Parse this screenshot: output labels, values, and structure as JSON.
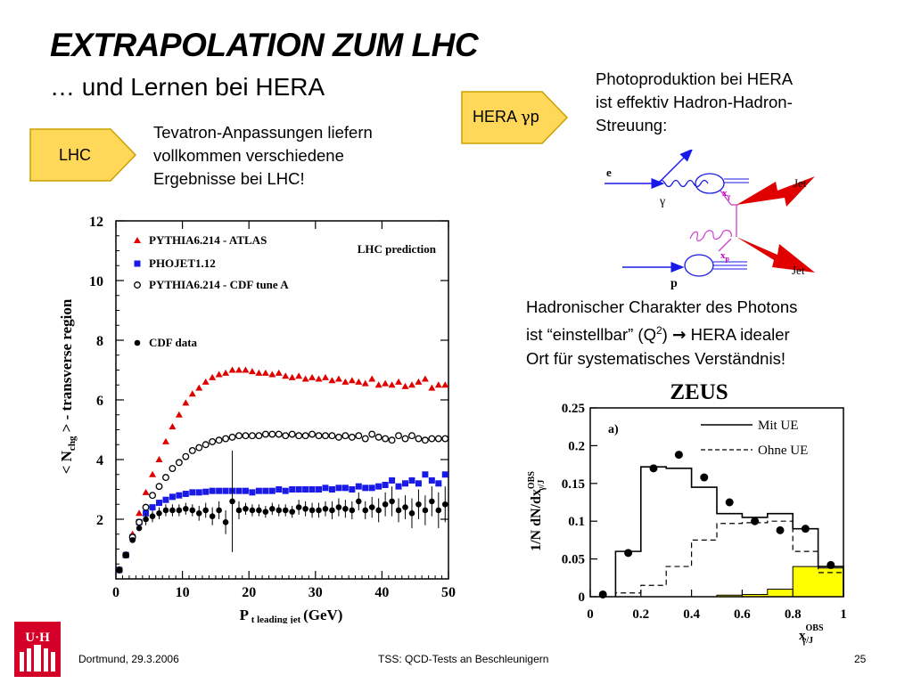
{
  "title": "EXTRAPOLATION ZUM LHC",
  "subtitle": "… und Lernen bei HERA",
  "lhc_arrow": {
    "label": "LHC"
  },
  "hera_arrow": {
    "label_prefix": "HERA ",
    "gamma": "γ",
    "label_suffix": "p"
  },
  "lhc_text": {
    "lines": [
      "Tevatron-Anpassungen liefern",
      "vollkommen verschiedene",
      "Ergebnisse bei LHC!"
    ]
  },
  "photo_text": {
    "lines": [
      "Photoproduktion bei HERA",
      "ist effektiv Hadron-Hadron-",
      "Streuung:"
    ]
  },
  "hadron_text": {
    "line1": "Hadronischer Charakter des Photons",
    "line2_a": "ist “einstellbar” (Q",
    "line2_sup": "2",
    "line2_b": ") ",
    "line2_arrow": "→",
    "line2_c": " HERA idealer",
    "line3": "Ort für systematisches Verständnis!"
  },
  "feynman": {
    "e": "e",
    "gamma": "γ",
    "x_gamma": "x",
    "x_gamma_sub": "γ",
    "x_p": "x",
    "x_p_sub": "p",
    "p": "p",
    "jet1": "Jet",
    "jet2": "Jet"
  },
  "colors": {
    "arrow_fill": "#ffd85a",
    "arrow_stroke": "#c9a000",
    "red": "#e00000",
    "blue": "#1a1ae8",
    "zeus_fill": "#ffff00"
  },
  "footer": {
    "date": "Dortmund, 29.3.2006",
    "talk": "TSS: QCD-Tests an Beschleunigern",
    "page": "25"
  },
  "logo": {
    "text": "U·H"
  },
  "chart_data": [
    {
      "type": "scatter",
      "title": "",
      "annotation": "LHC prediction",
      "xlabel": "P",
      "xlabel_sub": "t leading jet",
      "xlabel_unit": "(GeV)",
      "ylabel_a": "< N",
      "ylabel_sub": "chg",
      "ylabel_b": " > - transverse region",
      "xlim": [
        0,
        50
      ],
      "ylim": [
        0,
        12
      ],
      "xticks": [
        0,
        10,
        20,
        30,
        40,
        50
      ],
      "yticks": [
        2,
        4,
        6,
        8,
        10,
        12
      ],
      "legend_placement": "top-left",
      "series": [
        {
          "name": "PYTHIA6.214 - ATLAS",
          "marker": "triangle",
          "color": "#e00000",
          "x": [
            0.5,
            1.5,
            2.5,
            3.5,
            4.5,
            5.5,
            6.5,
            7.5,
            8.5,
            9.5,
            10.5,
            11.5,
            12.5,
            13.5,
            14.5,
            15.5,
            16.5,
            17.5,
            18.5,
            19.5,
            20.5,
            21.5,
            22.5,
            23.5,
            24.5,
            25.5,
            26.5,
            27.5,
            28.5,
            29.5,
            30.5,
            31.5,
            32.5,
            33.5,
            34.5,
            35.5,
            36.5,
            37.5,
            38.5,
            39.5,
            40.5,
            41.5,
            42.5,
            43.5,
            44.5,
            45.5,
            46.5,
            47.5,
            48.5,
            49.5
          ],
          "y": [
            0.3,
            0.8,
            1.5,
            2.2,
            2.9,
            3.5,
            4.0,
            4.6,
            5.1,
            5.5,
            5.9,
            6.2,
            6.4,
            6.6,
            6.75,
            6.85,
            6.9,
            7.0,
            7.0,
            7.0,
            6.95,
            6.9,
            6.9,
            6.85,
            6.9,
            6.8,
            6.75,
            6.8,
            6.7,
            6.75,
            6.7,
            6.75,
            6.65,
            6.7,
            6.6,
            6.65,
            6.6,
            6.55,
            6.7,
            6.5,
            6.55,
            6.5,
            6.6,
            6.45,
            6.5,
            6.6,
            6.7,
            6.4,
            6.5,
            6.5
          ]
        },
        {
          "name": "PHOJET1.12",
          "marker": "square",
          "color": "#1a1ae8",
          "x": [
            0.5,
            1.5,
            2.5,
            3.5,
            4.5,
            5.5,
            6.5,
            7.5,
            8.5,
            9.5,
            10.5,
            11.5,
            12.5,
            13.5,
            14.5,
            15.5,
            16.5,
            17.5,
            18.5,
            19.5,
            20.5,
            21.5,
            22.5,
            23.5,
            24.5,
            25.5,
            26.5,
            27.5,
            28.5,
            29.5,
            30.5,
            31.5,
            32.5,
            33.5,
            34.5,
            35.5,
            36.5,
            37.5,
            38.5,
            39.5,
            40.5,
            41.5,
            42.5,
            43.5,
            44.5,
            45.5,
            46.5,
            47.5,
            48.5,
            49.5
          ],
          "y": [
            0.3,
            0.8,
            1.4,
            1.9,
            2.2,
            2.4,
            2.55,
            2.65,
            2.75,
            2.8,
            2.85,
            2.9,
            2.9,
            2.92,
            2.95,
            2.95,
            2.95,
            2.95,
            2.95,
            2.95,
            2.9,
            2.95,
            2.95,
            2.95,
            3.0,
            2.95,
            3.0,
            3.0,
            3.0,
            3.0,
            3.0,
            3.05,
            3.0,
            3.05,
            3.05,
            3.0,
            3.1,
            3.05,
            3.05,
            3.1,
            3.15,
            3.3,
            3.1,
            3.2,
            3.3,
            3.2,
            3.5,
            3.3,
            3.2,
            3.5
          ]
        },
        {
          "name": "PYTHIA6.214 - CDF tune A",
          "marker": "open-circle",
          "color": "#000000",
          "x": [
            0.5,
            1.5,
            2.5,
            3.5,
            4.5,
            5.5,
            6.5,
            7.5,
            8.5,
            9.5,
            10.5,
            11.5,
            12.5,
            13.5,
            14.5,
            15.5,
            16.5,
            17.5,
            18.5,
            19.5,
            20.5,
            21.5,
            22.5,
            23.5,
            24.5,
            25.5,
            26.5,
            27.5,
            28.5,
            29.5,
            30.5,
            31.5,
            32.5,
            33.5,
            34.5,
            35.5,
            36.5,
            37.5,
            38.5,
            39.5,
            40.5,
            41.5,
            42.5,
            43.5,
            44.5,
            45.5,
            46.5,
            47.5,
            48.5,
            49.5
          ],
          "y": [
            0.3,
            0.8,
            1.4,
            1.9,
            2.4,
            2.8,
            3.1,
            3.4,
            3.7,
            3.9,
            4.1,
            4.3,
            4.4,
            4.5,
            4.6,
            4.65,
            4.7,
            4.75,
            4.8,
            4.8,
            4.8,
            4.8,
            4.85,
            4.85,
            4.85,
            4.8,
            4.85,
            4.8,
            4.8,
            4.85,
            4.8,
            4.8,
            4.8,
            4.75,
            4.8,
            4.75,
            4.8,
            4.7,
            4.85,
            4.75,
            4.7,
            4.65,
            4.8,
            4.7,
            4.8,
            4.7,
            4.65,
            4.7,
            4.7,
            4.7
          ]
        },
        {
          "name": "CDF data",
          "marker": "filled-circle",
          "color": "#000000",
          "x": [
            0.5,
            1.5,
            2.5,
            3.5,
            4.5,
            5.5,
            6.5,
            7.5,
            8.5,
            9.5,
            10.5,
            11.5,
            12.5,
            13.5,
            14.5,
            15.5,
            16.5,
            17.5,
            18.5,
            19.5,
            20.5,
            21.5,
            22.5,
            23.5,
            24.5,
            25.5,
            26.5,
            27.5,
            28.5,
            29.5,
            30.5,
            31.5,
            32.5,
            33.5,
            34.5,
            35.5,
            36.5,
            37.5,
            38.5,
            39.5,
            40.5,
            41.5,
            42.5,
            43.5,
            44.5,
            45.5,
            46.5,
            47.5,
            48.5,
            49.5
          ],
          "y": [
            0.3,
            0.8,
            1.3,
            1.7,
            2.0,
            2.1,
            2.2,
            2.3,
            2.3,
            2.3,
            2.35,
            2.3,
            2.2,
            2.3,
            2.1,
            2.3,
            1.9,
            2.6,
            2.3,
            2.35,
            2.3,
            2.3,
            2.25,
            2.35,
            2.3,
            2.3,
            2.25,
            2.4,
            2.35,
            2.3,
            2.3,
            2.35,
            2.3,
            2.4,
            2.35,
            2.3,
            2.6,
            2.3,
            2.4,
            2.3,
            2.5,
            2.6,
            2.3,
            2.4,
            2.2,
            2.5,
            2.3,
            2.6,
            2.3,
            2.5
          ],
          "err": [
            0.05,
            0.05,
            0.08,
            0.1,
            0.2,
            0.2,
            0.2,
            0.2,
            0.2,
            0.2,
            0.2,
            0.2,
            0.25,
            0.25,
            0.3,
            0.3,
            0.4,
            1.7,
            0.3,
            0.2,
            0.2,
            0.2,
            0.2,
            0.2,
            0.2,
            0.2,
            0.2,
            0.25,
            0.25,
            0.25,
            0.25,
            0.25,
            0.3,
            0.3,
            0.3,
            0.3,
            0.3,
            0.3,
            0.35,
            0.4,
            0.4,
            0.5,
            0.4,
            0.4,
            0.5,
            0.5,
            0.5,
            0.5,
            0.6,
            0.6
          ]
        }
      ]
    },
    {
      "type": "step",
      "title": "ZEUS",
      "panel_label": "a)",
      "ylabel": "1/N dN/dx",
      "ylabel_sup": "OBS",
      "ylabel_sub": "γ/J",
      "xlabel": "x",
      "xlabel_sup": "OBS",
      "xlabel_sub": "γ/J",
      "xlim": [
        0,
        1
      ],
      "ylim": [
        0,
        0.25
      ],
      "xticks": [
        0,
        0.2,
        0.4,
        0.6,
        0.8,
        1
      ],
      "xtick_labels": [
        "0",
        "0.2",
        "0.4",
        "0.6",
        "0.8",
        "1"
      ],
      "yticks": [
        0,
        0.05,
        0.1,
        0.15,
        0.2,
        0.25
      ],
      "ytick_labels": [
        "0",
        "0.05",
        "0.1",
        "0.15",
        "0.2",
        "0.25"
      ],
      "legend_placement": "top-right",
      "bin_edges": [
        0.1,
        0.2,
        0.3,
        0.4,
        0.5,
        0.6,
        0.7,
        0.8,
        0.9,
        1.0
      ],
      "series": [
        {
          "name": "Mit UE",
          "style": "solid",
          "values": [
            0.06,
            0.172,
            0.17,
            0.145,
            0.11,
            0.105,
            0.11,
            0.09,
            0.04
          ]
        },
        {
          "name": "Ohne UE",
          "style": "dashed",
          "values": [
            0.005,
            0.015,
            0.04,
            0.075,
            0.097,
            0.098,
            0.1,
            0.06,
            0.032
          ]
        },
        {
          "name": "",
          "style": "filled",
          "values": [
            0.0,
            0.0,
            0.0,
            0.0,
            0.002,
            0.003,
            0.01,
            0.04,
            0.038
          ]
        },
        {
          "name": "",
          "style": "data",
          "x": [
            0.05,
            0.15,
            0.25,
            0.35,
            0.45,
            0.55,
            0.65,
            0.75,
            0.85,
            0.95
          ],
          "values": [
            0.003,
            0.058,
            0.17,
            0.188,
            0.158,
            0.125,
            0.1,
            0.088,
            0.09,
            0.042
          ]
        }
      ]
    }
  ]
}
